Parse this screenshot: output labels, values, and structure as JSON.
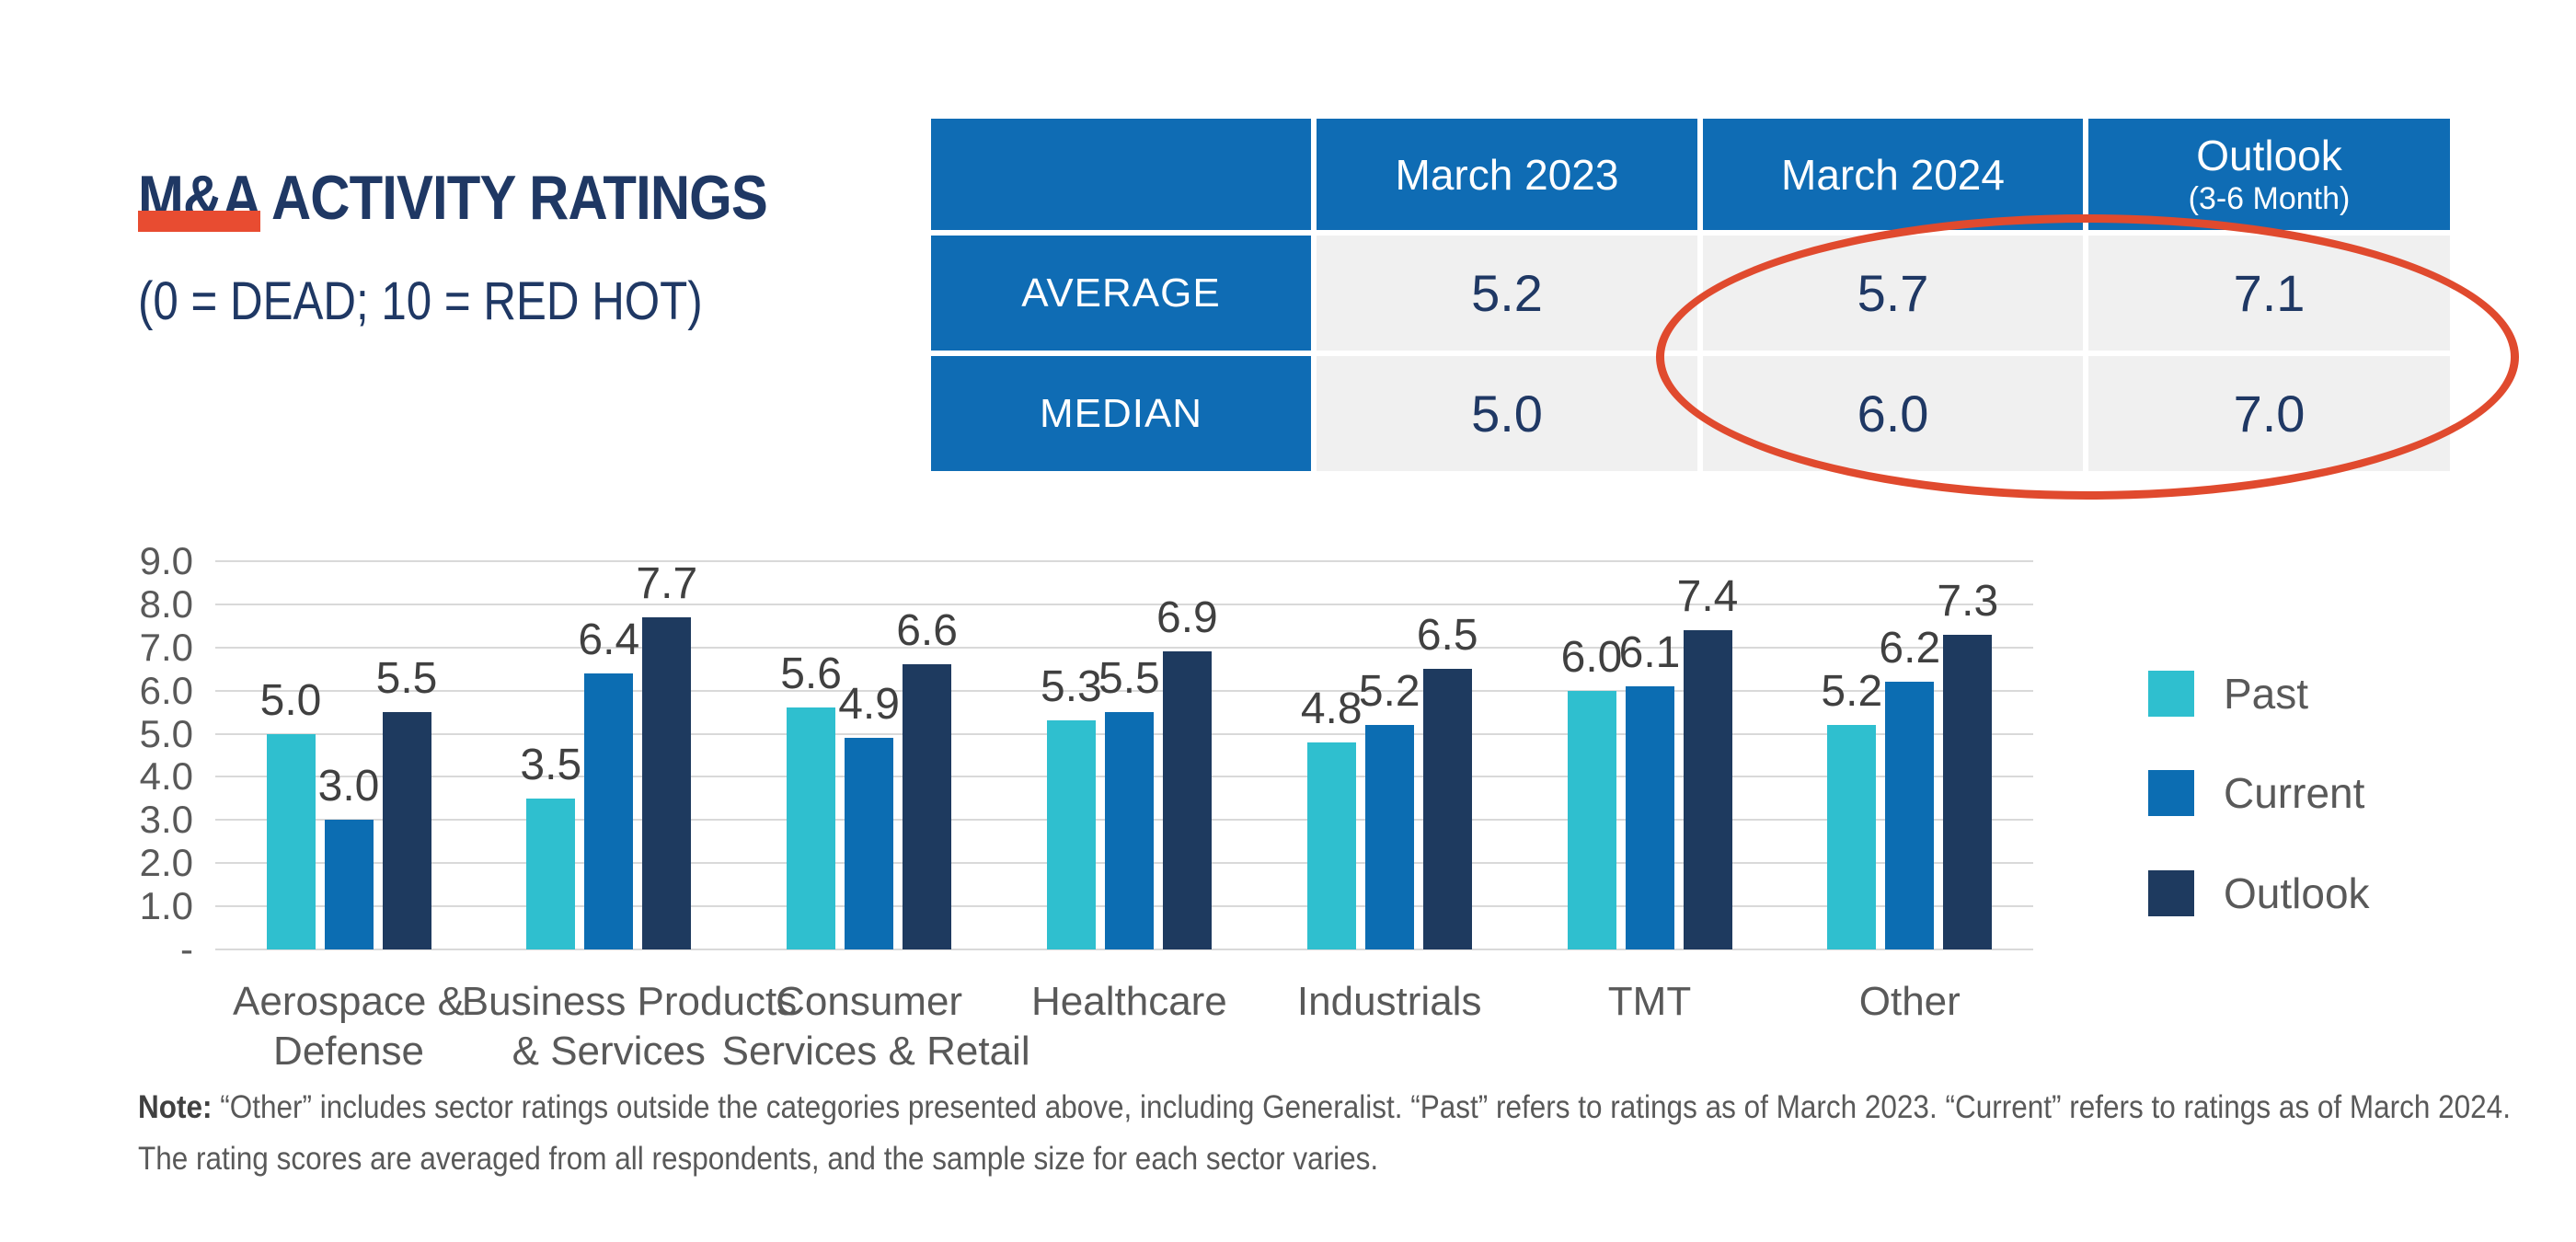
{
  "header": {
    "title": "M&A ACTIVITY RATINGS",
    "subtitle": "(0 = DEAD; 10 = RED HOT)"
  },
  "table": {
    "columns": {
      "blank": "",
      "col1": "March 2023",
      "col2": "March 2024",
      "col3_title": "Outlook",
      "col3_sub": "(3-6 Month)"
    },
    "rows": [
      {
        "label": "AVERAGE",
        "values": [
          "5.2",
          "5.7",
          "7.1"
        ]
      },
      {
        "label": "MEDIAN",
        "values": [
          "5.0",
          "6.0",
          "7.0"
        ]
      }
    ]
  },
  "chart_data": {
    "type": "bar",
    "categories": [
      "Aerospace & Defense",
      "Business Products & Services",
      "Consumer Services & Retail",
      "Healthcare",
      "Industrials",
      "TMT",
      "Other"
    ],
    "category_label_lines": [
      [
        "Aerospace &",
        "Defense"
      ],
      [
        "Business Products",
        "& Services"
      ],
      [
        "Consumer",
        "Services & Retail"
      ],
      [
        "Healthcare"
      ],
      [
        "Industrials"
      ],
      [
        "TMT"
      ],
      [
        "Other"
      ]
    ],
    "series": [
      {
        "name": "Past",
        "color": "#2FBFCF",
        "values": [
          5.0,
          3.5,
          5.6,
          5.3,
          4.8,
          6.0,
          5.2
        ]
      },
      {
        "name": "Current",
        "color": "#0C6DB2",
        "values": [
          3.0,
          6.4,
          4.9,
          5.5,
          5.2,
          6.1,
          6.2
        ]
      },
      {
        "name": "Outlook",
        "color": "#1E3A5F",
        "values": [
          5.5,
          7.7,
          6.6,
          6.9,
          6.5,
          7.4,
          7.3
        ]
      }
    ],
    "ylim": [
      0,
      9
    ],
    "ytick_step": 1,
    "zero_tick_label": "-",
    "grid": true,
    "value_labels": true,
    "legend_position": "right"
  },
  "note": {
    "label": "Note:",
    "line1": "“Other” includes sector ratings outside the categories presented above, including Generalist. “Past” refers to ratings as of March 2023. “Current” refers to ratings as of March 2024.",
    "line2": "The rating scores are averaged from all respondents, and the sample size for each sector varies."
  },
  "colors": {
    "title_navy": "#1F3864",
    "accent_red": "#E84C31",
    "ellipse_red": "#E04A2E",
    "table_header_blue": "#0F6CB4",
    "table_cell_gray": "#F0F0F0",
    "gridline_gray": "#D9D9D9",
    "axis_text_gray": "#595959",
    "value_text_gray": "#404040"
  }
}
